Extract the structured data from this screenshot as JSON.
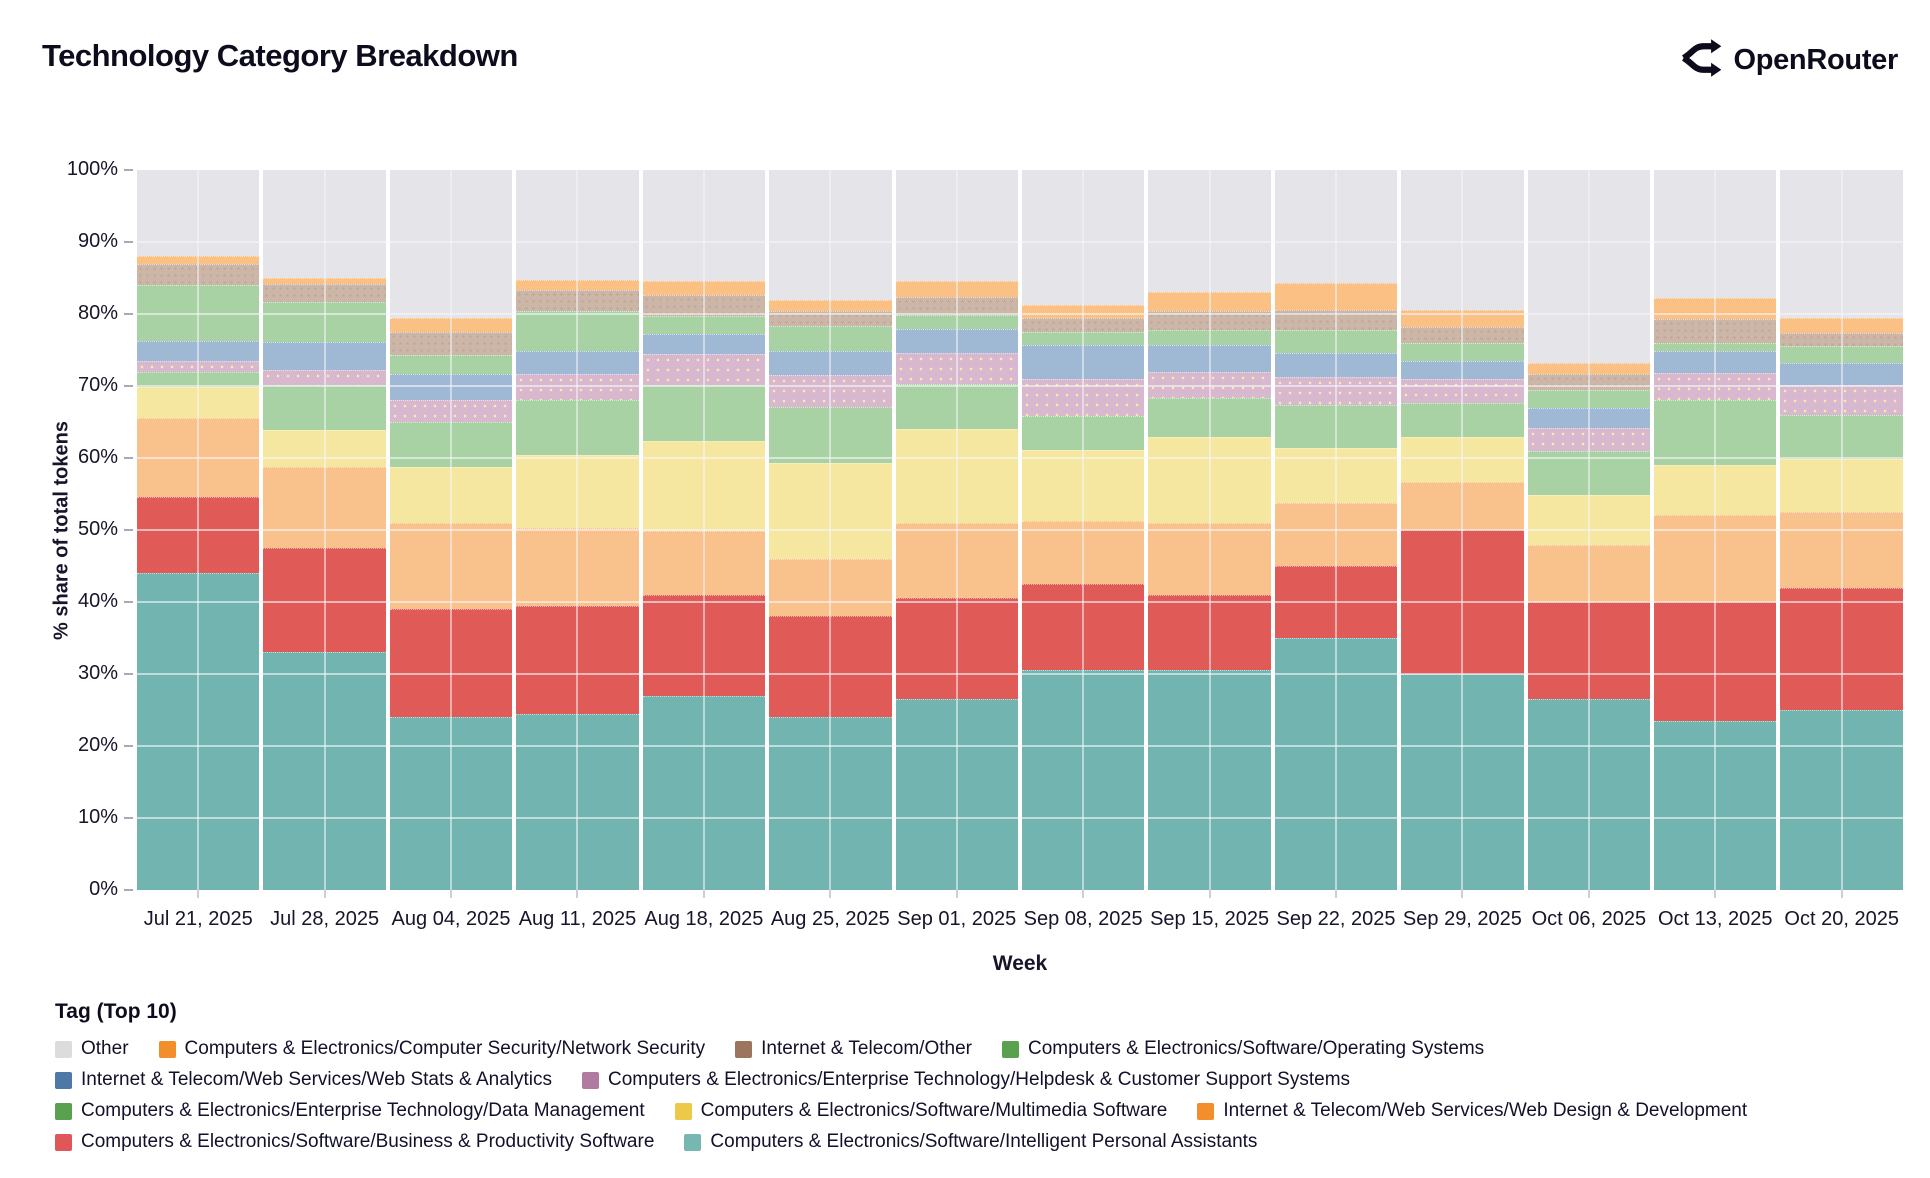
{
  "header": {
    "title": "Technology Category Breakdown",
    "brand": "OpenRouter"
  },
  "chart_data": {
    "type": "bar",
    "stacked": true,
    "normalized_percent": true,
    "title": "Technology Category Breakdown",
    "xlabel": "Week",
    "ylabel": "% share of total tokens",
    "ylim": [
      0,
      100
    ],
    "grid": true,
    "legend_title": "Tag (Top 10)",
    "legend_position": "bottom",
    "y_ticks": [
      "0%",
      "10%",
      "20%",
      "30%",
      "40%",
      "50%",
      "60%",
      "70%",
      "80%",
      "90%",
      "100%"
    ],
    "categories": [
      "Jul 21, 2025",
      "Jul 28, 2025",
      "Aug 04, 2025",
      "Aug 11, 2025",
      "Aug 18, 2025",
      "Aug 25, 2025",
      "Sep 01, 2025",
      "Sep 08, 2025",
      "Sep 15, 2025",
      "Sep 22, 2025",
      "Sep 29, 2025",
      "Oct 06, 2025",
      "Oct 13, 2025",
      "Oct 20, 2025"
    ],
    "series": [
      {
        "name": "Computers & Electronics/Software/Intelligent Personal Assistants",
        "legend_color": "#76b7b2",
        "bar_color": "#72b5b0",
        "values": [
          44.0,
          33.0,
          24.0,
          24.5,
          27.0,
          24.0,
          26.5,
          30.5,
          30.5,
          35.0,
          30.0,
          26.5,
          23.5,
          25.0
        ]
      },
      {
        "name": "Computers & Electronics/Software/Business & Productivity Software",
        "legend_color": "#e15759",
        "bar_color": "#e05a57",
        "values": [
          10.6,
          14.5,
          15.0,
          15.0,
          14.0,
          14.0,
          14.0,
          12.0,
          10.5,
          10.0,
          20.0,
          13.5,
          16.5,
          17.0
        ]
      },
      {
        "name": "Internet & Telecom/Web Services/Web Design & Development",
        "legend_color": "#f28e2b",
        "bar_color": "#f9c28c",
        "values": [
          10.9,
          11.2,
          12.0,
          10.8,
          8.8,
          8.0,
          10.5,
          8.8,
          9.9,
          8.8,
          6.7,
          7.9,
          12.1,
          10.5
        ]
      },
      {
        "name": "Computers & Electronics/Software/Multimedia Software",
        "legend_color": "#edc948",
        "bar_color": "#f5e6a0",
        "values": [
          4.3,
          5.2,
          7.7,
          10.1,
          12.5,
          13.3,
          13.0,
          9.8,
          12.0,
          7.6,
          6.2,
          7.0,
          6.9,
          7.4
        ]
      },
      {
        "name": "Computers & Electronics/Enterprise Technology/Data Management",
        "legend_color": "#59a14f",
        "bar_color": "#a8d2a3",
        "values": [
          2.2,
          6.3,
          6.3,
          7.7,
          7.8,
          7.8,
          6.3,
          4.7,
          5.4,
          6.0,
          4.8,
          6.0,
          9.0,
          6.1
        ]
      },
      {
        "name": "Computers & Electronics/Enterprise Technology/Helpdesk & Customer Support Systems",
        "legend_color": "#b07aa1",
        "bar_color": "#d7b8cf",
        "values": [
          1.5,
          2.0,
          3.0,
          3.6,
          4.3,
          4.4,
          4.3,
          5.1,
          3.7,
          3.9,
          3.2,
          3.2,
          3.8,
          4.1
        ]
      },
      {
        "name": "Internet & Telecom/Web Services/Web Stats & Analytics",
        "legend_color": "#4e79a7",
        "bar_color": "#9fb9d4",
        "values": [
          2.8,
          3.9,
          3.7,
          3.2,
          2.8,
          3.3,
          3.3,
          4.8,
          3.7,
          3.3,
          2.5,
          2.8,
          3.0,
          3.1
        ]
      },
      {
        "name": "Computers & Electronics/Software/Operating Systems",
        "legend_color": "#59a14f",
        "bar_color": "#a8d2a3",
        "values": [
          7.7,
          5.6,
          2.6,
          5.5,
          2.5,
          3.5,
          2.0,
          1.8,
          2.1,
          3.2,
          2.5,
          2.6,
          1.2,
          2.3
        ]
      },
      {
        "name": "Internet & Telecom/Other",
        "legend_color": "#9c755f",
        "bar_color": "#cbb6a8",
        "values": [
          2.9,
          2.4,
          3.2,
          2.9,
          2.9,
          2.1,
          2.5,
          2.0,
          2.6,
          2.8,
          2.3,
          2.2,
          3.3,
          1.8
        ]
      },
      {
        "name": "Computers & Electronics/Computer Security/Network Security",
        "legend_color": "#f28e2b",
        "bar_color": "#fbc083",
        "values": [
          1.2,
          0.9,
          1.9,
          1.4,
          2.0,
          1.6,
          2.2,
          1.8,
          2.7,
          3.7,
          2.3,
          1.5,
          2.9,
          2.2
        ]
      },
      {
        "name": "Other",
        "legend_color": "#dcdcdc",
        "bar_color": "#e4e4e9",
        "values": [
          11.9,
          15.0,
          20.6,
          15.3,
          15.4,
          18.0,
          15.4,
          18.7,
          16.9,
          15.7,
          19.5,
          26.8,
          17.8,
          20.5
        ]
      }
    ],
    "legend_rows": [
      [
        10,
        9,
        8,
        7
      ],
      [
        6,
        5
      ],
      [
        4,
        3,
        2
      ],
      [
        1,
        0
      ]
    ]
  }
}
